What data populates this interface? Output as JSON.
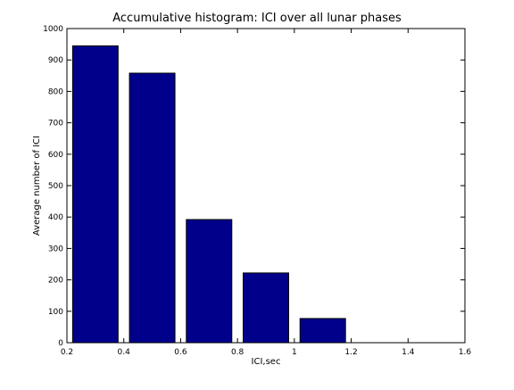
{
  "chart_data": {
    "type": "bar",
    "title": "Accumulative histogram: ICI over all lunar phases",
    "xlabel": "ICI,sec",
    "ylabel": "Average number of ICI",
    "xlim": [
      0.2,
      1.6
    ],
    "ylim": [
      0,
      1000
    ],
    "grid": false,
    "bar_color": "#00008B",
    "bar_width": 0.16,
    "x_ticks": [
      {
        "value": 0.2,
        "label": "0.2"
      },
      {
        "value": 0.4,
        "label": "0.4"
      },
      {
        "value": 0.6,
        "label": "0.6"
      },
      {
        "value": 0.8,
        "label": "0.8"
      },
      {
        "value": 1.0,
        "label": "1"
      },
      {
        "value": 1.2,
        "label": "1.2"
      },
      {
        "value": 1.4,
        "label": "1.4"
      },
      {
        "value": 1.6,
        "label": "1.6"
      }
    ],
    "y_ticks": [
      {
        "value": 0,
        "label": "0"
      },
      {
        "value": 100,
        "label": "100"
      },
      {
        "value": 200,
        "label": "200"
      },
      {
        "value": 300,
        "label": "300"
      },
      {
        "value": 400,
        "label": "400"
      },
      {
        "value": 500,
        "label": "500"
      },
      {
        "value": 600,
        "label": "600"
      },
      {
        "value": 700,
        "label": "700"
      },
      {
        "value": 800,
        "label": "800"
      },
      {
        "value": 900,
        "label": "900"
      },
      {
        "value": 1000,
        "label": "1000"
      }
    ],
    "bars": [
      {
        "x": 0.3,
        "value": 945
      },
      {
        "x": 0.5,
        "value": 858
      },
      {
        "x": 0.7,
        "value": 392
      },
      {
        "x": 0.9,
        "value": 222
      },
      {
        "x": 1.1,
        "value": 77
      },
      {
        "x": 1.3,
        "value": 0
      }
    ]
  }
}
